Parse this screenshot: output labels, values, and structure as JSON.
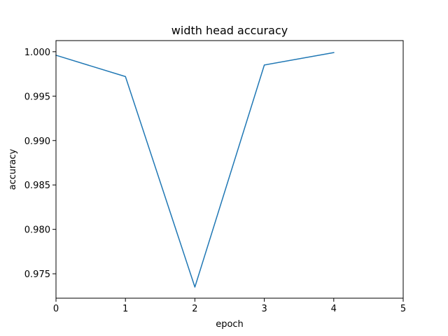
{
  "chart_data": {
    "type": "line",
    "title": "width head accuracy",
    "xlabel": "epoch",
    "ylabel": "accuracy",
    "xlim": [
      0,
      5
    ],
    "ylim": [
      0.97225,
      1.00125
    ],
    "xticks": [
      0,
      1,
      2,
      3,
      4,
      5
    ],
    "yticks": [
      0.975,
      0.98,
      0.985,
      0.99,
      0.995,
      1.0
    ],
    "grid": false,
    "line_color": "#1f77b4",
    "series": [
      {
        "x": [
          0,
          1,
          2,
          3,
          4
        ],
        "values": [
          0.9996,
          0.9972,
          0.9735,
          0.9985,
          0.9999
        ]
      }
    ]
  }
}
